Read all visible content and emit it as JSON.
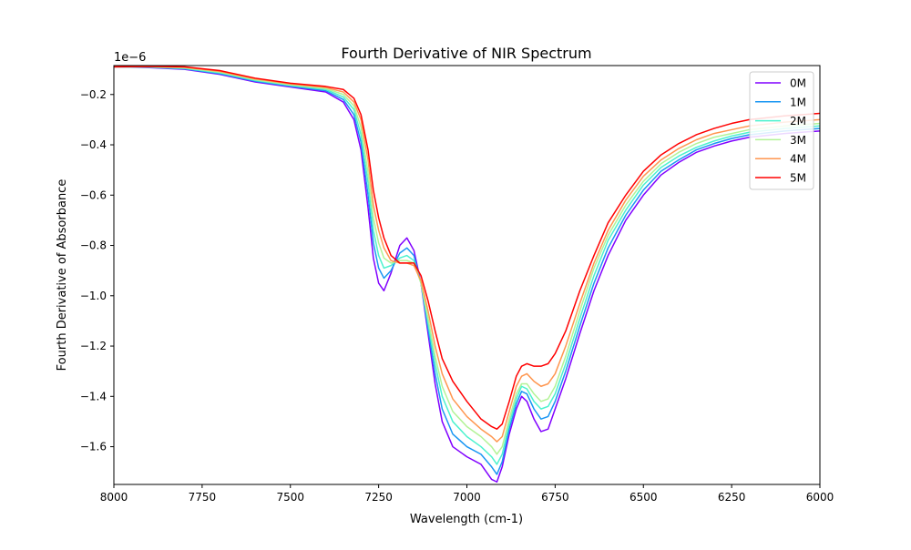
{
  "chart_data": {
    "type": "line",
    "title": "Fourth Derivative of NIR Spectrum",
    "xlabel": "Wavelength (cm-1)",
    "ylabel": "Fourth Derivative of Absorbance",
    "offset_label": "1e−6",
    "xlim": [
      8000,
      6000
    ],
    "ylim": [
      -1.75,
      -0.085
    ],
    "x_inverted": true,
    "y_scale_factor": 1e-06,
    "xticks": [
      8000,
      7750,
      7500,
      7250,
      7000,
      6750,
      6500,
      6250,
      6000
    ],
    "xtick_labels": [
      "8000",
      "7750",
      "7500",
      "7250",
      "7000",
      "6750",
      "6500",
      "6250",
      "6000"
    ],
    "yticks": [
      -0.2,
      -0.4,
      -0.6,
      -0.8,
      -1.0,
      -1.2,
      -1.4,
      -1.6
    ],
    "ytick_labels": [
      "−0.2",
      "−0.4",
      "−0.6",
      "−0.8",
      "−1.0",
      "−1.2",
      "−1.4",
      "−1.6"
    ],
    "grid": false,
    "legend_position": "upper right",
    "series": [
      {
        "name": "0M",
        "color": "#8000ff",
        "points": [
          [
            8000,
            -0.09
          ],
          [
            7900,
            -0.093
          ],
          [
            7800,
            -0.1
          ],
          [
            7700,
            -0.12
          ],
          [
            7600,
            -0.15
          ],
          [
            7500,
            -0.17
          ],
          [
            7400,
            -0.19
          ],
          [
            7350,
            -0.23
          ],
          [
            7320,
            -0.3
          ],
          [
            7300,
            -0.42
          ],
          [
            7280,
            -0.65
          ],
          [
            7265,
            -0.85
          ],
          [
            7250,
            -0.95
          ],
          [
            7235,
            -0.98
          ],
          [
            7215,
            -0.91
          ],
          [
            7190,
            -0.8
          ],
          [
            7170,
            -0.77
          ],
          [
            7150,
            -0.82
          ],
          [
            7130,
            -0.95
          ],
          [
            7110,
            -1.15
          ],
          [
            7090,
            -1.35
          ],
          [
            7070,
            -1.5
          ],
          [
            7040,
            -1.6
          ],
          [
            7000,
            -1.64
          ],
          [
            6960,
            -1.67
          ],
          [
            6930,
            -1.73
          ],
          [
            6915,
            -1.74
          ],
          [
            6900,
            -1.68
          ],
          [
            6880,
            -1.55
          ],
          [
            6860,
            -1.45
          ],
          [
            6845,
            -1.4
          ],
          [
            6830,
            -1.42
          ],
          [
            6810,
            -1.49
          ],
          [
            6790,
            -1.54
          ],
          [
            6770,
            -1.53
          ],
          [
            6750,
            -1.45
          ],
          [
            6720,
            -1.33
          ],
          [
            6680,
            -1.15
          ],
          [
            6640,
            -0.98
          ],
          [
            6600,
            -0.84
          ],
          [
            6550,
            -0.7
          ],
          [
            6500,
            -0.6
          ],
          [
            6450,
            -0.52
          ],
          [
            6400,
            -0.47
          ],
          [
            6350,
            -0.43
          ],
          [
            6300,
            -0.405
          ],
          [
            6250,
            -0.385
          ],
          [
            6200,
            -0.37
          ],
          [
            6100,
            -0.355
          ],
          [
            6000,
            -0.345
          ]
        ]
      },
      {
        "name": "1M",
        "color": "#1996f3",
        "points": [
          [
            8000,
            -0.09
          ],
          [
            7900,
            -0.092
          ],
          [
            7800,
            -0.098
          ],
          [
            7700,
            -0.117
          ],
          [
            7600,
            -0.147
          ],
          [
            7500,
            -0.167
          ],
          [
            7400,
            -0.185
          ],
          [
            7350,
            -0.22
          ],
          [
            7320,
            -0.28
          ],
          [
            7300,
            -0.39
          ],
          [
            7280,
            -0.6
          ],
          [
            7265,
            -0.79
          ],
          [
            7250,
            -0.89
          ],
          [
            7235,
            -0.93
          ],
          [
            7215,
            -0.9
          ],
          [
            7190,
            -0.83
          ],
          [
            7170,
            -0.81
          ],
          [
            7150,
            -0.84
          ],
          [
            7130,
            -0.95
          ],
          [
            7110,
            -1.13
          ],
          [
            7090,
            -1.31
          ],
          [
            7070,
            -1.45
          ],
          [
            7040,
            -1.55
          ],
          [
            7000,
            -1.6
          ],
          [
            6960,
            -1.63
          ],
          [
            6930,
            -1.68
          ],
          [
            6915,
            -1.71
          ],
          [
            6900,
            -1.66
          ],
          [
            6880,
            -1.53
          ],
          [
            6860,
            -1.43
          ],
          [
            6845,
            -1.38
          ],
          [
            6830,
            -1.39
          ],
          [
            6810,
            -1.45
          ],
          [
            6790,
            -1.49
          ],
          [
            6770,
            -1.48
          ],
          [
            6750,
            -1.42
          ],
          [
            6720,
            -1.3
          ],
          [
            6680,
            -1.12
          ],
          [
            6640,
            -0.95
          ],
          [
            6600,
            -0.81
          ],
          [
            6550,
            -0.68
          ],
          [
            6500,
            -0.58
          ],
          [
            6450,
            -0.505
          ],
          [
            6400,
            -0.46
          ],
          [
            6350,
            -0.42
          ],
          [
            6300,
            -0.395
          ],
          [
            6250,
            -0.375
          ],
          [
            6200,
            -0.36
          ],
          [
            6100,
            -0.345
          ],
          [
            6000,
            -0.335
          ]
        ]
      },
      {
        "name": "2M",
        "color": "#4cf2ce",
        "points": [
          [
            8000,
            -0.09
          ],
          [
            7900,
            -0.091
          ],
          [
            7800,
            -0.096
          ],
          [
            7700,
            -0.114
          ],
          [
            7600,
            -0.144
          ],
          [
            7500,
            -0.164
          ],
          [
            7400,
            -0.18
          ],
          [
            7350,
            -0.21
          ],
          [
            7320,
            -0.26
          ],
          [
            7300,
            -0.36
          ],
          [
            7280,
            -0.55
          ],
          [
            7265,
            -0.74
          ],
          [
            7250,
            -0.84
          ],
          [
            7235,
            -0.89
          ],
          [
            7215,
            -0.88
          ],
          [
            7190,
            -0.85
          ],
          [
            7170,
            -0.84
          ],
          [
            7150,
            -0.86
          ],
          [
            7130,
            -0.95
          ],
          [
            7110,
            -1.11
          ],
          [
            7090,
            -1.27
          ],
          [
            7070,
            -1.4
          ],
          [
            7040,
            -1.5
          ],
          [
            7000,
            -1.56
          ],
          [
            6960,
            -1.6
          ],
          [
            6930,
            -1.64
          ],
          [
            6915,
            -1.67
          ],
          [
            6900,
            -1.63
          ],
          [
            6880,
            -1.51
          ],
          [
            6860,
            -1.41
          ],
          [
            6845,
            -1.36
          ],
          [
            6830,
            -1.37
          ],
          [
            6810,
            -1.42
          ],
          [
            6790,
            -1.45
          ],
          [
            6770,
            -1.44
          ],
          [
            6750,
            -1.39
          ],
          [
            6720,
            -1.27
          ],
          [
            6680,
            -1.09
          ],
          [
            6640,
            -0.92
          ],
          [
            6600,
            -0.78
          ],
          [
            6550,
            -0.66
          ],
          [
            6500,
            -0.56
          ],
          [
            6450,
            -0.49
          ],
          [
            6400,
            -0.445
          ],
          [
            6350,
            -0.41
          ],
          [
            6300,
            -0.385
          ],
          [
            6250,
            -0.365
          ],
          [
            6200,
            -0.35
          ],
          [
            6100,
            -0.335
          ],
          [
            6000,
            -0.325
          ]
        ]
      },
      {
        "name": "3M",
        "color": "#b2f396",
        "points": [
          [
            8000,
            -0.09
          ],
          [
            7900,
            -0.09
          ],
          [
            7800,
            -0.094
          ],
          [
            7700,
            -0.111
          ],
          [
            7600,
            -0.141
          ],
          [
            7500,
            -0.161
          ],
          [
            7400,
            -0.176
          ],
          [
            7350,
            -0.2
          ],
          [
            7320,
            -0.245
          ],
          [
            7300,
            -0.33
          ],
          [
            7280,
            -0.51
          ],
          [
            7265,
            -0.69
          ],
          [
            7250,
            -0.79
          ],
          [
            7235,
            -0.85
          ],
          [
            7215,
            -0.87
          ],
          [
            7190,
            -0.86
          ],
          [
            7170,
            -0.86
          ],
          [
            7150,
            -0.87
          ],
          [
            7130,
            -0.95
          ],
          [
            7110,
            -1.09
          ],
          [
            7090,
            -1.24
          ],
          [
            7070,
            -1.36
          ],
          [
            7040,
            -1.46
          ],
          [
            7000,
            -1.52
          ],
          [
            6960,
            -1.56
          ],
          [
            6930,
            -1.6
          ],
          [
            6915,
            -1.63
          ],
          [
            6900,
            -1.6
          ],
          [
            6880,
            -1.49
          ],
          [
            6860,
            -1.39
          ],
          [
            6845,
            -1.35
          ],
          [
            6830,
            -1.35
          ],
          [
            6810,
            -1.39
          ],
          [
            6790,
            -1.42
          ],
          [
            6770,
            -1.41
          ],
          [
            6750,
            -1.36
          ],
          [
            6720,
            -1.24
          ],
          [
            6680,
            -1.06
          ],
          [
            6640,
            -0.89
          ],
          [
            6600,
            -0.76
          ],
          [
            6550,
            -0.64
          ],
          [
            6500,
            -0.545
          ],
          [
            6450,
            -0.475
          ],
          [
            6400,
            -0.43
          ],
          [
            6350,
            -0.395
          ],
          [
            6300,
            -0.37
          ],
          [
            6250,
            -0.355
          ],
          [
            6200,
            -0.34
          ],
          [
            6100,
            -0.325
          ],
          [
            6000,
            -0.315
          ]
        ]
      },
      {
        "name": "4M",
        "color": "#ff964f",
        "points": [
          [
            8000,
            -0.09
          ],
          [
            7900,
            -0.089
          ],
          [
            7800,
            -0.092
          ],
          [
            7700,
            -0.108
          ],
          [
            7600,
            -0.138
          ],
          [
            7500,
            -0.158
          ],
          [
            7400,
            -0.172
          ],
          [
            7350,
            -0.19
          ],
          [
            7320,
            -0.23
          ],
          [
            7300,
            -0.3
          ],
          [
            7280,
            -0.46
          ],
          [
            7265,
            -0.64
          ],
          [
            7250,
            -0.74
          ],
          [
            7235,
            -0.81
          ],
          [
            7215,
            -0.86
          ],
          [
            7190,
            -0.87
          ],
          [
            7170,
            -0.87
          ],
          [
            7150,
            -0.88
          ],
          [
            7130,
            -0.94
          ],
          [
            7110,
            -1.06
          ],
          [
            7090,
            -1.2
          ],
          [
            7070,
            -1.31
          ],
          [
            7040,
            -1.41
          ],
          [
            7000,
            -1.48
          ],
          [
            6960,
            -1.53
          ],
          [
            6930,
            -1.56
          ],
          [
            6915,
            -1.58
          ],
          [
            6900,
            -1.56
          ],
          [
            6880,
            -1.46
          ],
          [
            6860,
            -1.36
          ],
          [
            6845,
            -1.32
          ],
          [
            6830,
            -1.31
          ],
          [
            6810,
            -1.34
          ],
          [
            6790,
            -1.36
          ],
          [
            6770,
            -1.35
          ],
          [
            6750,
            -1.31
          ],
          [
            6720,
            -1.2
          ],
          [
            6680,
            -1.03
          ],
          [
            6640,
            -0.87
          ],
          [
            6600,
            -0.74
          ],
          [
            6550,
            -0.62
          ],
          [
            6500,
            -0.525
          ],
          [
            6450,
            -0.46
          ],
          [
            6400,
            -0.415
          ],
          [
            6350,
            -0.38
          ],
          [
            6300,
            -0.355
          ],
          [
            6250,
            -0.34
          ],
          [
            6200,
            -0.325
          ],
          [
            6100,
            -0.31
          ],
          [
            6000,
            -0.3
          ]
        ]
      },
      {
        "name": "5M",
        "color": "#ff0000",
        "points": [
          [
            8000,
            -0.09
          ],
          [
            7900,
            -0.088
          ],
          [
            7800,
            -0.09
          ],
          [
            7700,
            -0.105
          ],
          [
            7600,
            -0.135
          ],
          [
            7500,
            -0.155
          ],
          [
            7400,
            -0.168
          ],
          [
            7350,
            -0.18
          ],
          [
            7320,
            -0.215
          ],
          [
            7300,
            -0.28
          ],
          [
            7280,
            -0.42
          ],
          [
            7265,
            -0.58
          ],
          [
            7250,
            -0.69
          ],
          [
            7235,
            -0.77
          ],
          [
            7215,
            -0.84
          ],
          [
            7190,
            -0.87
          ],
          [
            7170,
            -0.87
          ],
          [
            7150,
            -0.87
          ],
          [
            7130,
            -0.92
          ],
          [
            7110,
            -1.02
          ],
          [
            7090,
            -1.14
          ],
          [
            7070,
            -1.25
          ],
          [
            7040,
            -1.34
          ],
          [
            7000,
            -1.42
          ],
          [
            6960,
            -1.49
          ],
          [
            6930,
            -1.52
          ],
          [
            6915,
            -1.53
          ],
          [
            6900,
            -1.51
          ],
          [
            6880,
            -1.42
          ],
          [
            6860,
            -1.32
          ],
          [
            6845,
            -1.28
          ],
          [
            6830,
            -1.27
          ],
          [
            6810,
            -1.28
          ],
          [
            6790,
            -1.28
          ],
          [
            6770,
            -1.27
          ],
          [
            6750,
            -1.23
          ],
          [
            6720,
            -1.14
          ],
          [
            6680,
            -0.98
          ],
          [
            6640,
            -0.84
          ],
          [
            6600,
            -0.71
          ],
          [
            6550,
            -0.6
          ],
          [
            6500,
            -0.505
          ],
          [
            6450,
            -0.44
          ],
          [
            6400,
            -0.395
          ],
          [
            6350,
            -0.36
          ],
          [
            6300,
            -0.335
          ],
          [
            6250,
            -0.315
          ],
          [
            6200,
            -0.3
          ],
          [
            6100,
            -0.285
          ],
          [
            6000,
            -0.275
          ]
        ]
      }
    ]
  }
}
